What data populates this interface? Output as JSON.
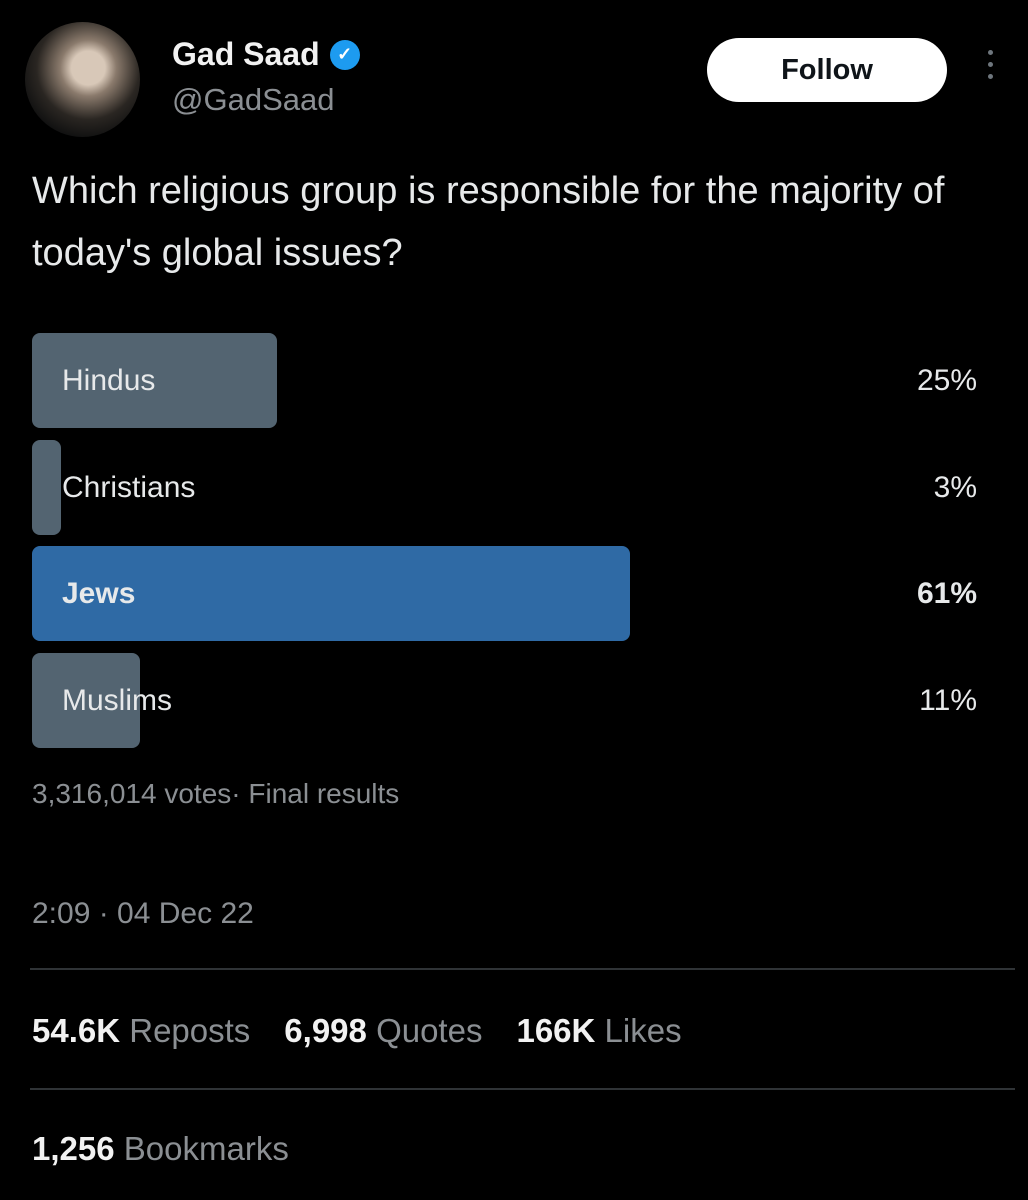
{
  "author": {
    "name": "Gad Saad",
    "handle": "@GadSaad",
    "verified": true,
    "verified_color": "#1d9bf0"
  },
  "header": {
    "follow_label": "Follow",
    "more_icon": "more-vertical-icon"
  },
  "tweet": {
    "text": "Which religious group is responsible for the majority of today's global issues?"
  },
  "poll": {
    "options": [
      {
        "label": "Hindus",
        "percent_label": "25%",
        "percent": 25,
        "winner": false
      },
      {
        "label": "Christians",
        "percent_label": "3%",
        "percent": 3,
        "winner": false
      },
      {
        "label": "Jews",
        "percent_label": "61%",
        "percent": 61,
        "winner": true
      },
      {
        "label": "Muslims",
        "percent_label": "11%",
        "percent": 11,
        "winner": false
      }
    ],
    "summary": "3,316,014 votes· Final results",
    "bar_color": "#536471",
    "winner_color": "#2f6aa5"
  },
  "timestamp": "2:09 · 04 Dec 22",
  "stats": {
    "reposts": {
      "count": "54.6K",
      "label": "Reposts"
    },
    "quotes": {
      "count": "6,998",
      "label": "Quotes"
    },
    "likes": {
      "count": "166K",
      "label": "Likes"
    },
    "bookmarks": {
      "count": "1,256",
      "label": "Bookmarks"
    }
  }
}
